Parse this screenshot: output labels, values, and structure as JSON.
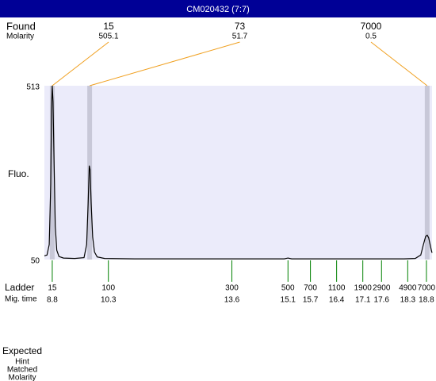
{
  "chart_data": {
    "type": "line",
    "title": "CM020432 (7:7)",
    "y_label": "Fluo.",
    "found_label": "Found",
    "molarity_label": "Molarity",
    "peaks": [
      {
        "size": 15,
        "molarity": 505.1,
        "time": 8.8
      },
      {
        "size": 73,
        "molarity": 51.7,
        "time": 9.8
      },
      {
        "size": 7000,
        "molarity": 0.5,
        "time": 18.82
      }
    ],
    "ladder": {
      "label": "Ladder",
      "time_label": "Mig. time",
      "sizes": [
        15,
        100,
        300,
        500,
        700,
        1100,
        1900,
        2900,
        4900,
        7000
      ],
      "times": [
        8.8,
        10.3,
        13.6,
        15.1,
        15.7,
        16.4,
        17.1,
        17.6,
        18.3,
        18.8
      ]
    },
    "footer_labels": [
      "Expected",
      "Hint",
      "Matched",
      "Molarity"
    ],
    "x": [
      8.59,
      8.66,
      8.72,
      8.76,
      8.78,
      8.8,
      8.82,
      8.85,
      8.88,
      8.92,
      8.98,
      9.1,
      9.4,
      9.65,
      9.72,
      9.76,
      9.79,
      9.81,
      9.84,
      9.88,
      9.93,
      10.0,
      10.2,
      11,
      13,
      15,
      15.1,
      15.2,
      17,
      18.2,
      18.5,
      18.65,
      18.72,
      18.78,
      18.82,
      18.86,
      18.9,
      18.93,
      18.95
    ],
    "series": [
      {
        "color": "#000000",
        "values": [
          60,
          62,
          90,
          250,
          450,
          513,
          470,
          300,
          140,
          75,
          58,
          54,
          53,
          55,
          90,
          200,
          300,
          290,
          200,
          110,
          70,
          57,
          53,
          52,
          52,
          52,
          54,
          52,
          52,
          52,
          53,
          62,
          90,
          112,
          115,
          108,
          90,
          75,
          68
        ]
      }
    ],
    "xlim": [
      8.59,
      18.95
    ],
    "ylim": [
      50,
      513
    ],
    "yticks": [
      513,
      50
    ],
    "background": "#ebebfa",
    "peak_band_color": "#c8c8d8",
    "link_color": "#f0a020",
    "ladder_color": "#008000"
  }
}
